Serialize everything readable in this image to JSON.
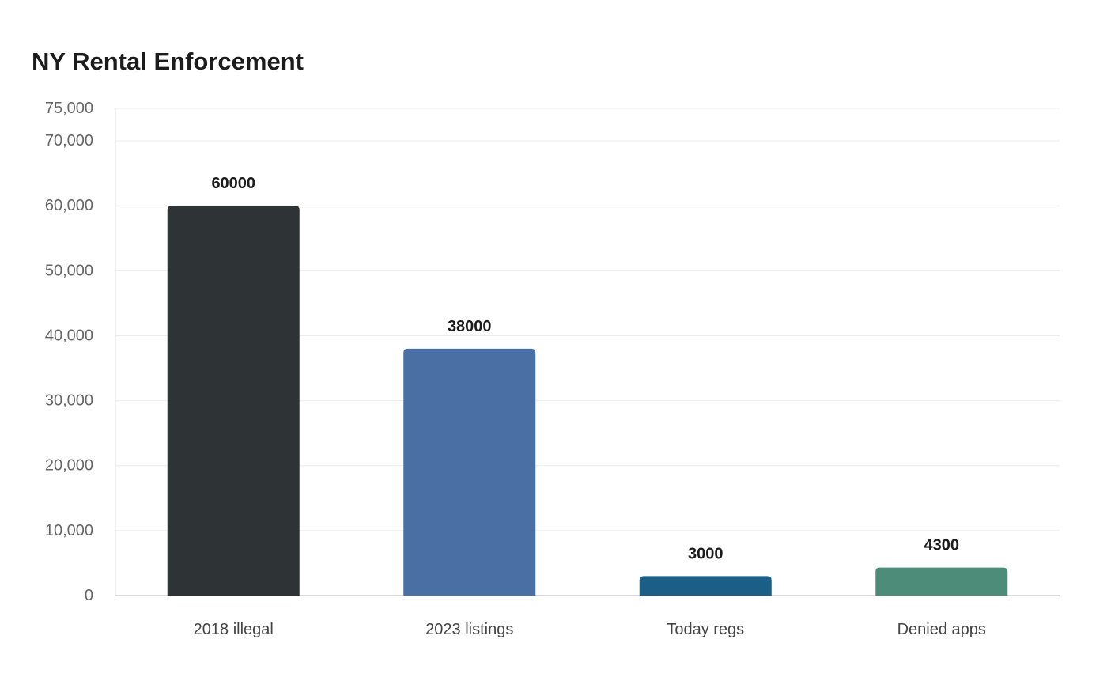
{
  "chart_data": {
    "type": "bar",
    "title": "NY Rental Enforcement",
    "xlabel": "",
    "ylabel": "",
    "categories": [
      "2018 illegal",
      "2023 listings",
      "Today regs",
      "Denied apps"
    ],
    "values": [
      60000,
      38000,
      3000,
      4300
    ],
    "value_labels": [
      "60000",
      "38000",
      "3000",
      "4300"
    ],
    "colors": [
      "#2e3436",
      "#4a6fa5",
      "#1b5e86",
      "#4e8c7a"
    ],
    "ylim": [
      0,
      75000
    ],
    "yticks": [
      0,
      10000,
      20000,
      30000,
      40000,
      50000,
      60000,
      70000,
      75000
    ],
    "ytick_labels": [
      "0",
      "10,000",
      "20,000",
      "30,000",
      "40,000",
      "50,000",
      "60,000",
      "70,000",
      "75,000"
    ],
    "grid": true,
    "legend": "none"
  }
}
